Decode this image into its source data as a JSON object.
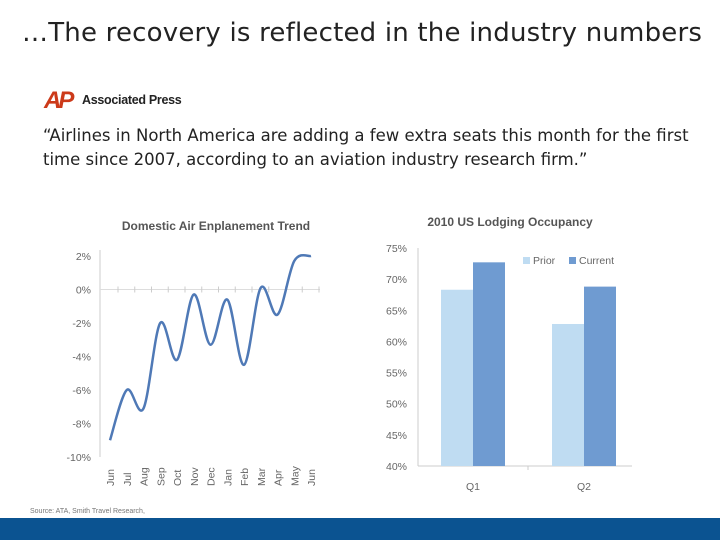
{
  "slide": {
    "title": "…The recovery is reflected in the industry numbers",
    "logo": {
      "mark": "AP",
      "text": "Associated Press",
      "color": "#cc3a1a"
    },
    "quote": "“Airlines in North America are adding a few extra seats this month for the first time since 2007, according to an aviation industry research firm.”",
    "source": "Source: ATA, Smith Travel Research,",
    "footer_color": "#0b5391"
  },
  "chart_data": [
    {
      "type": "line",
      "title": "Domestic Air Enplanement Trend",
      "categories": [
        "Jun",
        "Jul",
        "Aug",
        "Sep",
        "Oct",
        "Nov",
        "Dec",
        "Jan",
        "Feb",
        "Mar",
        "Apr",
        "May",
        "Jun"
      ],
      "values": [
        -9.0,
        -6.0,
        -7.1,
        -2.0,
        -4.2,
        -0.3,
        -3.3,
        -0.6,
        -4.5,
        0.1,
        -1.5,
        1.7,
        2.0
      ],
      "ylim": [
        -10,
        2
      ],
      "yticks": [
        "2%",
        "0%",
        "-2%",
        "-4%",
        "-6%",
        "-8%",
        "-10%"
      ],
      "ytick_values": [
        2,
        0,
        -2,
        -4,
        -6,
        -8,
        -10
      ],
      "color": "#4f79b6",
      "smooth": true,
      "grid": false
    },
    {
      "type": "bar",
      "title": "2010 US  Lodging Occupancy",
      "categories": [
        "Q1",
        "Q2"
      ],
      "series": [
        {
          "name": "Prior",
          "values": [
            68.3,
            62.8
          ],
          "color": "#bfdcf2"
        },
        {
          "name": "Current",
          "values": [
            72.7,
            68.8
          ],
          "color": "#6f9bd1"
        }
      ],
      "ylim": [
        40,
        75
      ],
      "yticks": [
        "75%",
        "70%",
        "65%",
        "60%",
        "55%",
        "50%",
        "45%",
        "40%"
      ],
      "ytick_values": [
        75,
        70,
        65,
        60,
        55,
        50,
        45,
        40
      ],
      "legend": "top-right",
      "grid": false
    }
  ]
}
